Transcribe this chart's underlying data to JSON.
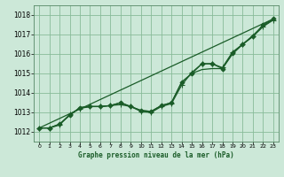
{
  "background_color": "#cce8d8",
  "grid_color": "#88bb99",
  "line_color": "#1a5c28",
  "title": "Graphe pression niveau de la mer (hPa)",
  "xlim": [
    -0.5,
    23.5
  ],
  "ylim": [
    1011.5,
    1018.5
  ],
  "yticks": [
    1012,
    1013,
    1014,
    1015,
    1016,
    1017,
    1018
  ],
  "xticks": [
    0,
    1,
    2,
    3,
    4,
    5,
    6,
    7,
    8,
    9,
    10,
    11,
    12,
    13,
    14,
    15,
    16,
    17,
    18,
    19,
    20,
    21,
    22,
    23
  ],
  "lines": [
    {
      "x": [
        0,
        1,
        2,
        3,
        4,
        5,
        6,
        7,
        8,
        9,
        10,
        11,
        12,
        13,
        14,
        15,
        16,
        17,
        18,
        19,
        20,
        21,
        22,
        23
      ],
      "y": [
        1012.2,
        1012.2,
        1012.4,
        1012.85,
        1013.25,
        1013.3,
        1013.3,
        1013.35,
        1013.5,
        1013.3,
        1013.1,
        1013.05,
        1013.35,
        1013.5,
        1014.55,
        1015.0,
        1015.5,
        1015.5,
        1015.25,
        1016.05,
        1016.5,
        1016.9,
        1017.5,
        1017.8
      ],
      "marker": "D",
      "markersize": 2.5,
      "lw": 0.9
    },
    {
      "x": [
        0,
        1,
        2,
        3,
        4,
        5,
        6,
        7,
        8,
        9,
        10,
        11,
        12,
        13,
        14,
        15,
        16,
        17,
        18,
        19,
        20,
        21,
        22,
        23
      ],
      "y": [
        1012.2,
        1012.2,
        1012.4,
        1012.85,
        1013.25,
        1013.3,
        1013.3,
        1013.35,
        1013.5,
        1013.3,
        1013.1,
        1013.05,
        1013.35,
        1013.5,
        1014.55,
        1015.0,
        1015.2,
        1015.25,
        1015.25,
        1016.0,
        1016.5,
        1016.95,
        1017.45,
        1017.75
      ],
      "marker": null,
      "markersize": 0,
      "lw": 0.9
    },
    {
      "x": [
        0,
        1,
        2,
        3,
        4,
        5,
        6,
        7,
        8,
        9,
        10,
        11,
        12,
        13,
        14,
        15,
        16,
        17,
        18,
        19,
        20,
        21,
        22,
        23
      ],
      "y": [
        1012.2,
        1012.2,
        1012.35,
        1012.9,
        1013.2,
        1013.3,
        1013.3,
        1013.35,
        1013.4,
        1013.3,
        1013.05,
        1013.0,
        1013.3,
        1013.45,
        1014.4,
        1015.05,
        1015.5,
        1015.5,
        1015.3,
        1016.1,
        1016.5,
        1016.9,
        1017.4,
        1017.75
      ],
      "marker": "+",
      "markersize": 4,
      "lw": 0.9
    },
    {
      "x": [
        0,
        23
      ],
      "y": [
        1012.2,
        1017.8
      ],
      "marker": null,
      "markersize": 0,
      "lw": 0.9
    }
  ]
}
